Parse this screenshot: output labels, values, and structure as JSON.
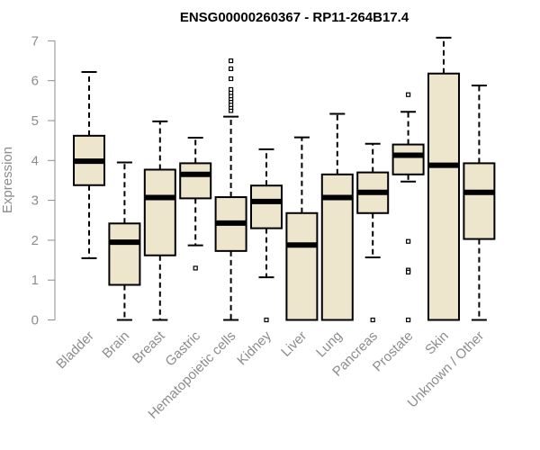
{
  "chart_data": {
    "type": "boxplot",
    "title": "ENSG00000260367 - RP11-264B17.4",
    "xlabel": "",
    "ylabel": "Expression",
    "ylim": [
      0,
      7
    ],
    "yticks": [
      0,
      1,
      2,
      3,
      4,
      5,
      6,
      7
    ],
    "box_color": "#ede6cc",
    "categories": [
      "Bladder",
      "Brain",
      "Breast",
      "Gastric",
      "Hematopoietic cells",
      "Kidney",
      "Liver",
      "Lung",
      "Pancreas",
      "Prostate",
      "Skin",
      "Unknown / Other"
    ],
    "boxes": [
      {
        "name": "Bladder",
        "whisker_low": 1.55,
        "q1": 3.38,
        "median": 3.98,
        "q3": 4.62,
        "whisker_high": 6.22,
        "outliers": []
      },
      {
        "name": "Brain",
        "whisker_low": 0.0,
        "q1": 0.88,
        "median": 1.95,
        "q3": 2.42,
        "whisker_high": 3.95,
        "outliers": []
      },
      {
        "name": "Breast",
        "whisker_low": 0.0,
        "q1": 1.62,
        "median": 3.07,
        "q3": 3.77,
        "whisker_high": 4.98,
        "outliers": []
      },
      {
        "name": "Gastric",
        "whisker_low": 1.87,
        "q1": 3.05,
        "median": 3.65,
        "q3": 3.93,
        "whisker_high": 4.57,
        "outliers": [
          1.3
        ]
      },
      {
        "name": "Hematopoietic cells",
        "whisker_low": 0.0,
        "q1": 1.73,
        "median": 2.43,
        "q3": 3.08,
        "whisker_high": 5.1,
        "outliers": [
          5.25,
          5.33,
          5.4,
          5.48,
          5.55,
          5.62,
          5.7,
          5.78,
          6.05,
          6.3,
          6.5
        ]
      },
      {
        "name": "Kidney",
        "whisker_low": 1.07,
        "q1": 2.3,
        "median": 2.97,
        "q3": 3.37,
        "whisker_high": 4.28,
        "outliers": [
          0.0
        ]
      },
      {
        "name": "Liver",
        "whisker_low": 0.0,
        "q1": 0.0,
        "median": 1.88,
        "q3": 2.68,
        "whisker_high": 4.58,
        "outliers": []
      },
      {
        "name": "Lung",
        "whisker_low": 0.0,
        "q1": 0.0,
        "median": 3.07,
        "q3": 3.65,
        "whisker_high": 5.17,
        "outliers": []
      },
      {
        "name": "Pancreas",
        "whisker_low": 1.57,
        "q1": 2.68,
        "median": 3.2,
        "q3": 3.7,
        "whisker_high": 4.42,
        "outliers": [
          0.0
        ]
      },
      {
        "name": "Prostate",
        "whisker_low": 3.47,
        "q1": 3.65,
        "median": 4.13,
        "q3": 4.4,
        "whisker_high": 5.22,
        "outliers": [
          5.65,
          1.97,
          1.25,
          1.2,
          0.0
        ]
      },
      {
        "name": "Skin",
        "whisker_low": 0.0,
        "q1": 0.0,
        "median": 3.88,
        "q3": 6.18,
        "whisker_high": 7.08,
        "outliers": []
      },
      {
        "name": "Unknown / Other",
        "whisker_low": 0.0,
        "q1": 2.03,
        "median": 3.2,
        "q3": 3.93,
        "whisker_high": 5.88,
        "outliers": []
      }
    ]
  }
}
